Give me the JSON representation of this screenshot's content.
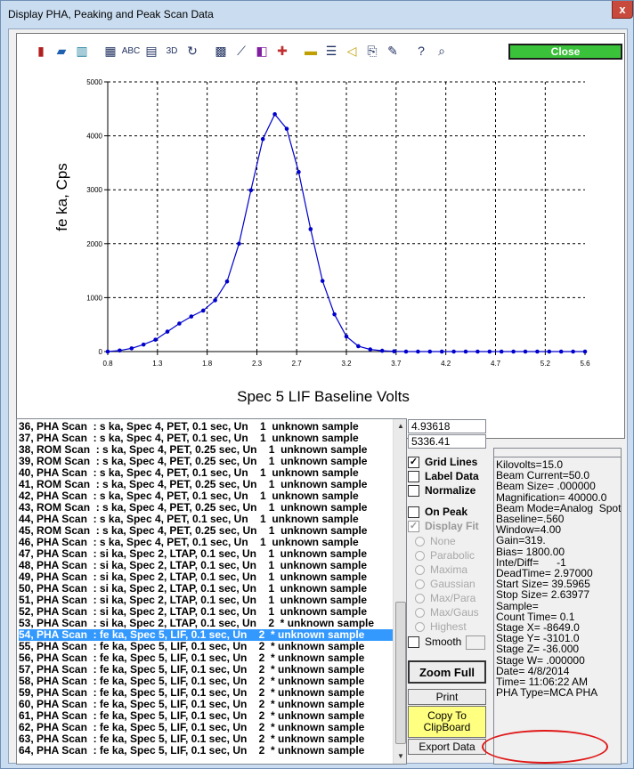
{
  "window": {
    "title": "Display PHA, Peaking and Peak Scan Data",
    "close_glyph": "x"
  },
  "toolbar": {
    "icons": [
      "bar-chart-icon",
      "3d-bar-icon",
      "grouped-bar-icon",
      "data-grid-icon",
      "abc-label-icon",
      "table-icon",
      "3d-view-icon",
      "rotate-icon",
      "texture-icon",
      "line-style-icon",
      "color-palette-icon",
      "crosshair-icon",
      "legend-icon",
      "list-icon",
      "tag-icon",
      "export-image-icon",
      "pen-icon",
      "help-icon",
      "zoom-icon"
    ],
    "abc_label": "ABC",
    "threed_label": "3D",
    "close_label": "Close"
  },
  "chart_data": {
    "type": "line",
    "xlabel": "Spec  5 LIF Baseline Volts",
    "ylabel": "fe ka, Cps",
    "xlim": [
      0.8,
      5.6
    ],
    "ylim": [
      0,
      5000
    ],
    "xticks": [
      "0.8",
      "1.3",
      "1.8",
      "2.3",
      "2.7",
      "3.2",
      "3.7",
      "4.2",
      "4.7",
      "5.2",
      "5.6"
    ],
    "yticks": [
      "0",
      "1000",
      "2000",
      "3000",
      "4000",
      "5000"
    ],
    "grid": true,
    "color": "#0000cc",
    "x": [
      0.8,
      0.92,
      1.04,
      1.16,
      1.28,
      1.4,
      1.52,
      1.64,
      1.76,
      1.88,
      2.0,
      2.12,
      2.24,
      2.36,
      2.48,
      2.6,
      2.72,
      2.84,
      2.96,
      3.08,
      3.2,
      3.32,
      3.44,
      3.56,
      3.68,
      3.8,
      3.92,
      4.04,
      4.16,
      4.28,
      4.4,
      4.52,
      4.64,
      4.76,
      4.88,
      5.0,
      5.12,
      5.24,
      5.36,
      5.48,
      5.6
    ],
    "y": [
      0,
      20,
      60,
      130,
      220,
      370,
      520,
      650,
      760,
      950,
      1300,
      2000,
      2990,
      3940,
      4400,
      4130,
      3330,
      2270,
      1310,
      690,
      280,
      100,
      40,
      15,
      5,
      0,
      0,
      0,
      0,
      0,
      0,
      0,
      0,
      0,
      0,
      0,
      0,
      0,
      0,
      0,
      0
    ]
  },
  "list": {
    "items": [
      "36, PHA Scan  : s ka, Spec 4, PET, 0.1 sec, Un    1  unknown sample",
      "37, PHA Scan  : s ka, Spec 4, PET, 0.1 sec, Un    1  unknown sample",
      "38, ROM Scan  : s ka, Spec 4, PET, 0.25 sec, Un    1  unknown sample",
      "39, ROM Scan  : s ka, Spec 4, PET, 0.25 sec, Un    1  unknown sample",
      "40, PHA Scan  : s ka, Spec 4, PET, 0.1 sec, Un    1  unknown sample",
      "41, ROM Scan  : s ka, Spec 4, PET, 0.25 sec, Un    1  unknown sample",
      "42, PHA Scan  : s ka, Spec 4, PET, 0.1 sec, Un    1  unknown sample",
      "43, ROM Scan  : s ka, Spec 4, PET, 0.25 sec, Un    1  unknown sample",
      "44, PHA Scan  : s ka, Spec 4, PET, 0.1 sec, Un    1  unknown sample",
      "45, ROM Scan  : s ka, Spec 4, PET, 0.25 sec, Un    1  unknown sample",
      "46, PHA Scan  : s ka, Spec 4, PET, 0.1 sec, Un    1  unknown sample",
      "47, PHA Scan  : si ka, Spec 2, LTAP, 0.1 sec, Un    1  unknown sample",
      "48, PHA Scan  : si ka, Spec 2, LTAP, 0.1 sec, Un    1  unknown sample",
      "49, PHA Scan  : si ka, Spec 2, LTAP, 0.1 sec, Un    1  unknown sample",
      "50, PHA Scan  : si ka, Spec 2, LTAP, 0.1 sec, Un    1  unknown sample",
      "51, PHA Scan  : si ka, Spec 2, LTAP, 0.1 sec, Un    1  unknown sample",
      "52, PHA Scan  : si ka, Spec 2, LTAP, 0.1 sec, Un    1  unknown sample",
      "53, PHA Scan  : si ka, Spec 2, LTAP, 0.1 sec, Un    2  * unknown sample",
      "54, PHA Scan  : fe ka, Spec 5, LIF, 0.1 sec, Un    2  * unknown sample",
      "55, PHA Scan  : fe ka, Spec 5, LIF, 0.1 sec, Un    2  * unknown sample",
      "56, PHA Scan  : fe ka, Spec 5, LIF, 0.1 sec, Un    2  * unknown sample",
      "57, PHA Scan  : fe ka, Spec 5, LIF, 0.1 sec, Un    2  * unknown sample",
      "58, PHA Scan  : fe ka, Spec 5, LIF, 0.1 sec, Un    2  * unknown sample",
      "59, PHA Scan  : fe ka, Spec 5, LIF, 0.1 sec, Un    2  * unknown sample",
      "60, PHA Scan  : fe ka, Spec 5, LIF, 0.1 sec, Un    2  * unknown sample",
      "61, PHA Scan  : fe ka, Spec 5, LIF, 0.1 sec, Un    2  * unknown sample",
      "62, PHA Scan  : fe ka, Spec 5, LIF, 0.1 sec, Un    2  * unknown sample",
      "63, PHA Scan  : fe ka, Spec 5, LIF, 0.1 sec, Un    2  * unknown sample",
      "64, PHA Scan  : fe ka, Spec 5, LIF, 0.1 sec, Un    2  * unknown sample"
    ],
    "selected_index": 18,
    "scroll_up": "▲",
    "scroll_down": "▼"
  },
  "readouts": {
    "x": "4.93618",
    "y": "5336.41"
  },
  "options": {
    "grid_lines": "Grid Lines",
    "label_data": "Label Data",
    "normalize": "Normalize",
    "on_peak": "On Peak",
    "display_fit": "Display Fit",
    "fit_types": [
      "None",
      "Parabolic",
      "Maxima",
      "Gaussian",
      "Max/Para",
      "Max/Gaus",
      "Highest"
    ],
    "smooth": "Smooth",
    "check_glyph": "✓"
  },
  "buttons": {
    "zoom_full": "Zoom Full",
    "print": "Print",
    "copy_to_clipboard": "Copy To ClipBoard",
    "export_data": "Export Data"
  },
  "info_lines": [
    "Kilovolts=15.0",
    "Beam Current=50.0",
    "Beam Size= .000000",
    "Magnification= 40000.0",
    "Beam Mode=Analog  Spot",
    "Baseline=.560",
    "Window=4.00",
    "Gain=319.",
    "Bias= 1800.00",
    "Inte/Diff=      -1",
    "DeadTime= 2.97000",
    "Start Size= 39.5965",
    "Stop Size= 2.63977",
    "Sample=",
    "Count Time= 0.1",
    "Stage X= -8649.0",
    "Stage Y= -3101.0",
    "Stage Z= -36.000",
    "Stage W= .000000",
    "Date= 4/8/2014",
    "Time= 11:06:22 AM",
    "PHA Type=MCA PHA"
  ],
  "colors": {
    "selection": "#3399ff",
    "close_green": "#3bc23b",
    "annotation_red": "#e01818",
    "chart_blue": "#0000cc"
  }
}
